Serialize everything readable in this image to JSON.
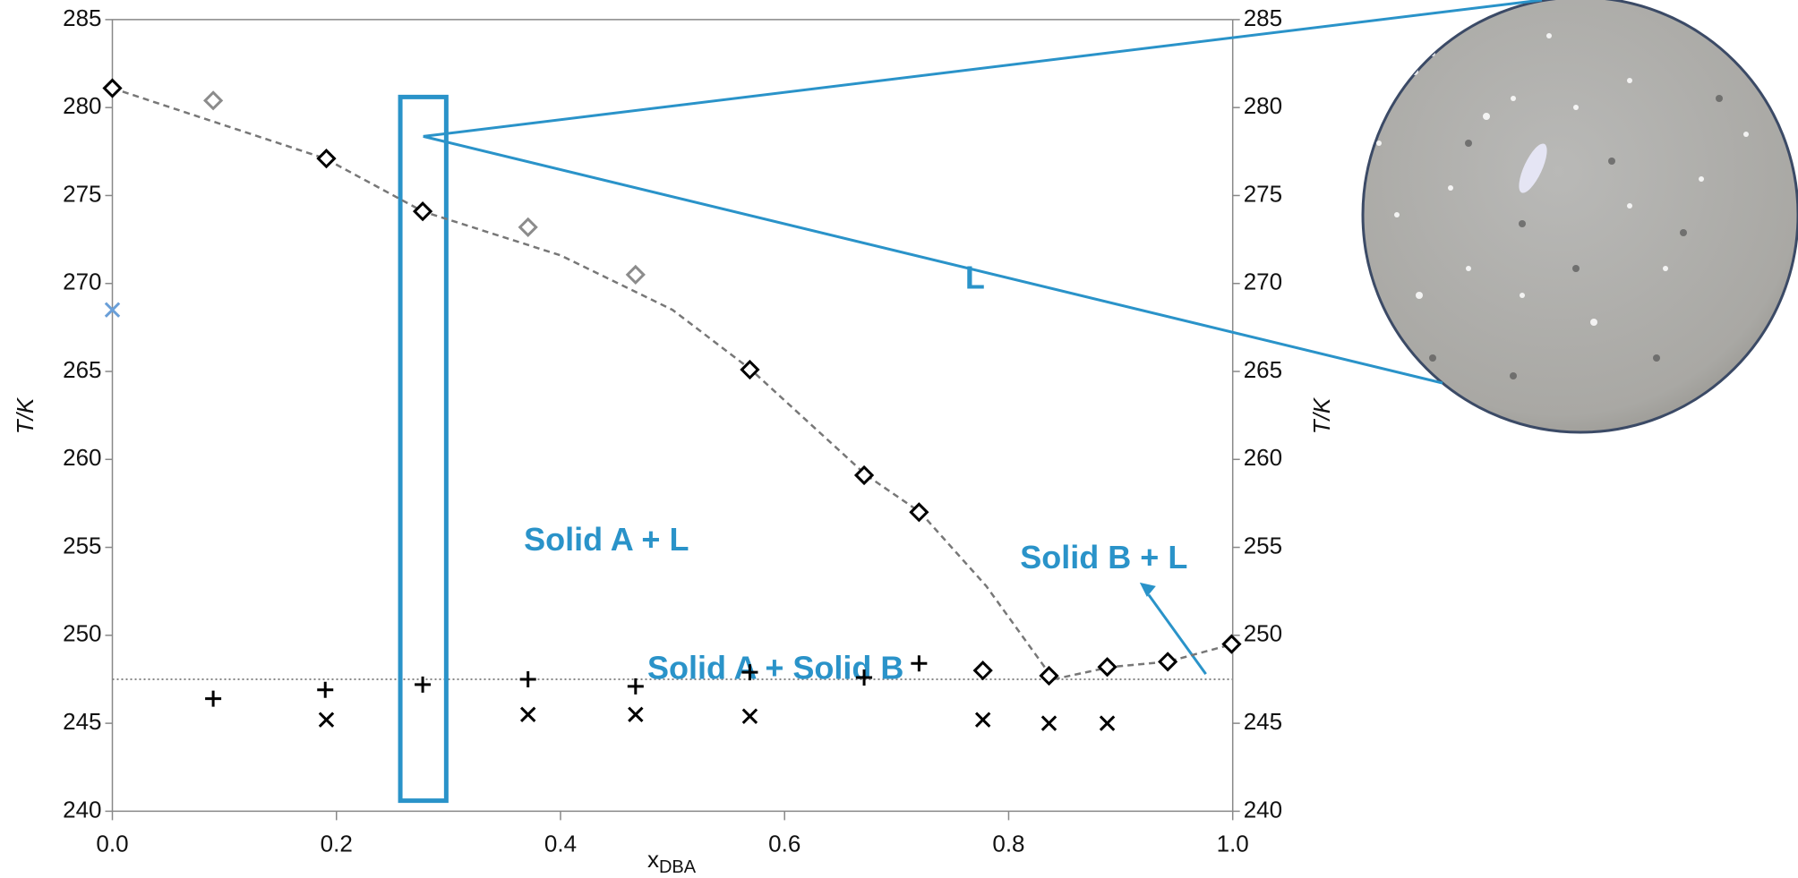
{
  "chart_data": {
    "type": "scatter",
    "xlabel": "x",
    "xlabel_subscript": "DBA",
    "ylabel": "T/K",
    "y2label": "T/K",
    "xlim": [
      0,
      1
    ],
    "xticks": [
      {
        "value": 0,
        "label": "0.0"
      },
      0.2,
      0.4,
      0.6,
      0.8,
      {
        "value": 1,
        "label": "1.0"
      }
    ],
    "ylim": [
      240,
      285
    ],
    "yticks": [
      240,
      245,
      250,
      255,
      260,
      265,
      270,
      275,
      280,
      285
    ],
    "y2lim": [
      240,
      285
    ],
    "y2ticks": [
      240,
      245,
      250,
      255,
      260,
      265,
      270,
      275,
      280,
      285
    ],
    "series": [
      {
        "marker": "line",
        "color": "#777777",
        "x": [
          0,
          0.19,
          0.277,
          0.4,
          0.5,
          0.57,
          0.673,
          0.721,
          0.78,
          0.84,
          0.891,
          0.942,
          1.0
        ],
        "values": [
          281.1,
          277.1,
          274.1,
          271.6,
          268.5,
          265.1,
          259.1,
          257.0,
          252.8,
          247.5,
          248.2,
          248.5,
          249.5
        ]
      },
      {
        "marker": "diamond",
        "color": "#000000",
        "x": [
          0,
          0.191,
          0.277,
          0.569,
          0.671,
          0.72,
          0.777,
          0.836,
          0.888,
          0.942,
          0.999
        ],
        "values": [
          281.1,
          277.1,
          274.1,
          265.1,
          259.1,
          257.0,
          248.0,
          247.7,
          248.2,
          248.5,
          249.5
        ]
      },
      {
        "marker": "diamond",
        "color": "#8c8c8c",
        "x": [
          0.09,
          0.371,
          0.467
        ],
        "values": [
          280.4,
          273.2,
          270.5
        ]
      },
      {
        "marker": "cross",
        "color": "#6a9fd8",
        "x": [
          0
        ],
        "values": [
          268.5
        ]
      },
      {
        "marker": "plus",
        "color": "#000000",
        "x": [
          0.09,
          0.19,
          0.277,
          0.371,
          0.467,
          0.569,
          0.671,
          0.72
        ],
        "values": [
          246.4,
          246.9,
          247.2,
          247.5,
          247.1,
          247.9,
          247.6,
          248.4
        ]
      },
      {
        "marker": "cross",
        "color": "#000000",
        "x": [
          0.191,
          0.371,
          0.467,
          0.569,
          0.777,
          0.836,
          0.888
        ],
        "values": [
          245.2,
          245.5,
          245.5,
          245.4,
          245.2,
          245.0,
          245.0
        ]
      }
    ],
    "eutectic": 247.5,
    "highlight": {
      "xlim": [
        0.257,
        0.298
      ],
      "ylim": [
        240.6,
        280.6
      ],
      "color": "#2a93c9"
    },
    "annotations": [
      {
        "text": "L",
        "x": 0.77,
        "y": 270.2
      },
      {
        "text": "Solid A + L",
        "x": 0.441,
        "y": 255.3
      },
      {
        "text": "Solid B + L",
        "x": 0.885,
        "y": 254.3
      },
      {
        "text": "Solid A + Solid B",
        "x": 0.592,
        "y": 248.0
      }
    ],
    "annotation_color": "#2a93c9"
  }
}
